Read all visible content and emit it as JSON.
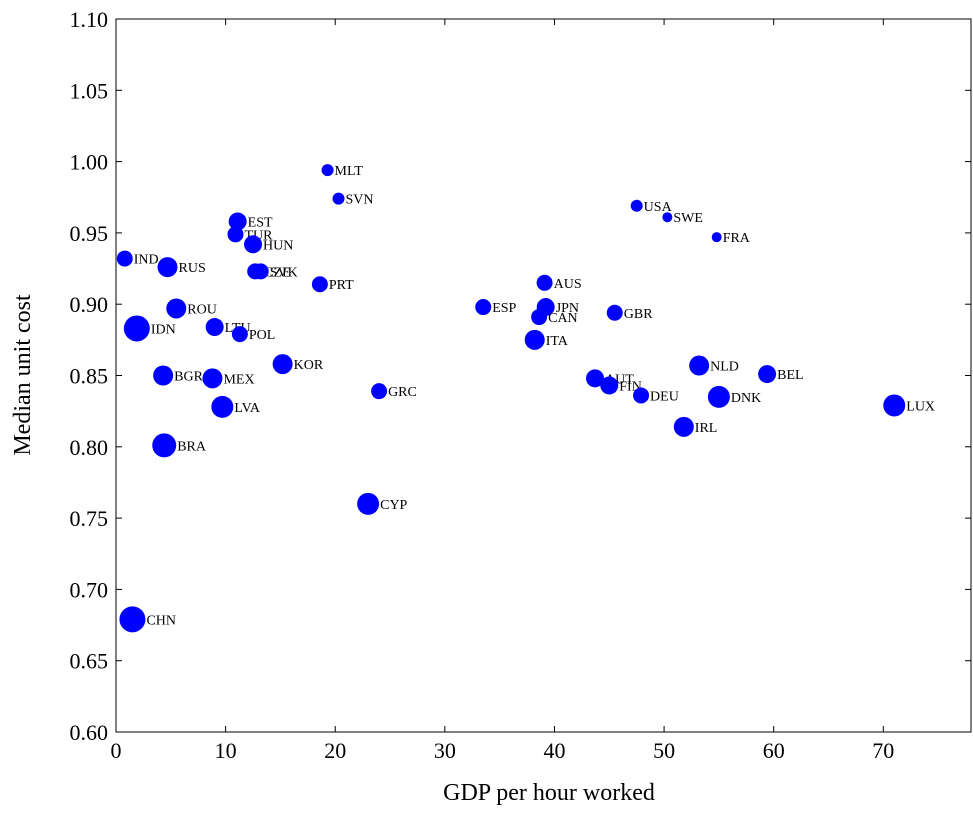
{
  "chart_data": {
    "type": "scatter",
    "title": "",
    "xlabel": "GDP per hour worked",
    "ylabel": "Median unit cost",
    "xlim": [
      0,
      78
    ],
    "ylim": [
      0.6,
      1.1
    ],
    "x_ticks": [
      0,
      10,
      20,
      30,
      40,
      50,
      60,
      70
    ],
    "x_tick_labels": [
      "0",
      "10",
      "20",
      "30",
      "40",
      "50",
      "60",
      "70"
    ],
    "y_ticks": [
      0.6,
      0.65,
      0.7,
      0.75,
      0.8,
      0.85,
      0.9,
      0.95,
      1.0,
      1.05,
      1.1
    ],
    "y_tick_labels": [
      "0.60",
      "0.65",
      "0.70",
      "0.75",
      "0.80",
      "0.85",
      "0.90",
      "0.95",
      "1.00",
      "1.05",
      "1.10"
    ],
    "grid": false,
    "marker_color": "#0000ff",
    "points": [
      {
        "label": "CHN",
        "x": 1.5,
        "y": 0.679,
        "size": 13
      },
      {
        "label": "IND",
        "x": 0.8,
        "y": 0.932,
        "size": 8
      },
      {
        "label": "IDN",
        "x": 1.9,
        "y": 0.883,
        "size": 13
      },
      {
        "label": "RUS",
        "x": 4.7,
        "y": 0.926,
        "size": 10
      },
      {
        "label": "ROU",
        "x": 5.5,
        "y": 0.897,
        "size": 10
      },
      {
        "label": "BGR",
        "x": 4.3,
        "y": 0.85,
        "size": 10
      },
      {
        "label": "BRA",
        "x": 4.4,
        "y": 0.801,
        "size": 12
      },
      {
        "label": "MEX",
        "x": 8.8,
        "y": 0.848,
        "size": 10
      },
      {
        "label": "LVA",
        "x": 9.7,
        "y": 0.828,
        "size": 11
      },
      {
        "label": "LTU",
        "x": 9.0,
        "y": 0.884,
        "size": 9
      },
      {
        "label": "POL",
        "x": 11.3,
        "y": 0.879,
        "size": 8
      },
      {
        "label": "EST",
        "x": 11.1,
        "y": 0.958,
        "size": 9
      },
      {
        "label": "TUR",
        "x": 10.9,
        "y": 0.949,
        "size": 8
      },
      {
        "label": "HUN",
        "x": 12.5,
        "y": 0.942,
        "size": 9
      },
      {
        "label": "CZE",
        "x": 12.7,
        "y": 0.923,
        "size": 8
      },
      {
        "label": "SVK",
        "x": 13.2,
        "y": 0.923,
        "size": 8
      },
      {
        "label": "KOR",
        "x": 15.2,
        "y": 0.858,
        "size": 10
      },
      {
        "label": "PRT",
        "x": 18.6,
        "y": 0.914,
        "size": 8
      },
      {
        "label": "MLT",
        "x": 19.3,
        "y": 0.994,
        "size": 6
      },
      {
        "label": "SVN",
        "x": 20.3,
        "y": 0.974,
        "size": 6
      },
      {
        "label": "CYP",
        "x": 23.0,
        "y": 0.76,
        "size": 11
      },
      {
        "label": "GRC",
        "x": 24.0,
        "y": 0.839,
        "size": 8
      },
      {
        "label": "ESP",
        "x": 33.5,
        "y": 0.898,
        "size": 8
      },
      {
        "label": "ITA",
        "x": 38.2,
        "y": 0.875,
        "size": 10
      },
      {
        "label": "AUS",
        "x": 39.1,
        "y": 0.915,
        "size": 8
      },
      {
        "label": "JPN",
        "x": 39.2,
        "y": 0.898,
        "size": 9
      },
      {
        "label": "CAN",
        "x": 38.6,
        "y": 0.891,
        "size": 8
      },
      {
        "label": "AUT",
        "x": 43.7,
        "y": 0.848,
        "size": 9
      },
      {
        "label": "FIN",
        "x": 45.0,
        "y": 0.843,
        "size": 9
      },
      {
        "label": "GBR",
        "x": 45.5,
        "y": 0.894,
        "size": 8
      },
      {
        "label": "USA",
        "x": 47.5,
        "y": 0.969,
        "size": 6
      },
      {
        "label": "SWE",
        "x": 50.3,
        "y": 0.961,
        "size": 5
      },
      {
        "label": "DEU",
        "x": 47.9,
        "y": 0.836,
        "size": 8
      },
      {
        "label": "FRA",
        "x": 54.8,
        "y": 0.947,
        "size": 5
      },
      {
        "label": "IRL",
        "x": 51.8,
        "y": 0.814,
        "size": 10
      },
      {
        "label": "NLD",
        "x": 53.2,
        "y": 0.857,
        "size": 10
      },
      {
        "label": "DNK",
        "x": 55.0,
        "y": 0.835,
        "size": 11
      },
      {
        "label": "BEL",
        "x": 59.4,
        "y": 0.851,
        "size": 9
      },
      {
        "label": "LUX",
        "x": 71.0,
        "y": 0.829,
        "size": 11
      }
    ]
  }
}
